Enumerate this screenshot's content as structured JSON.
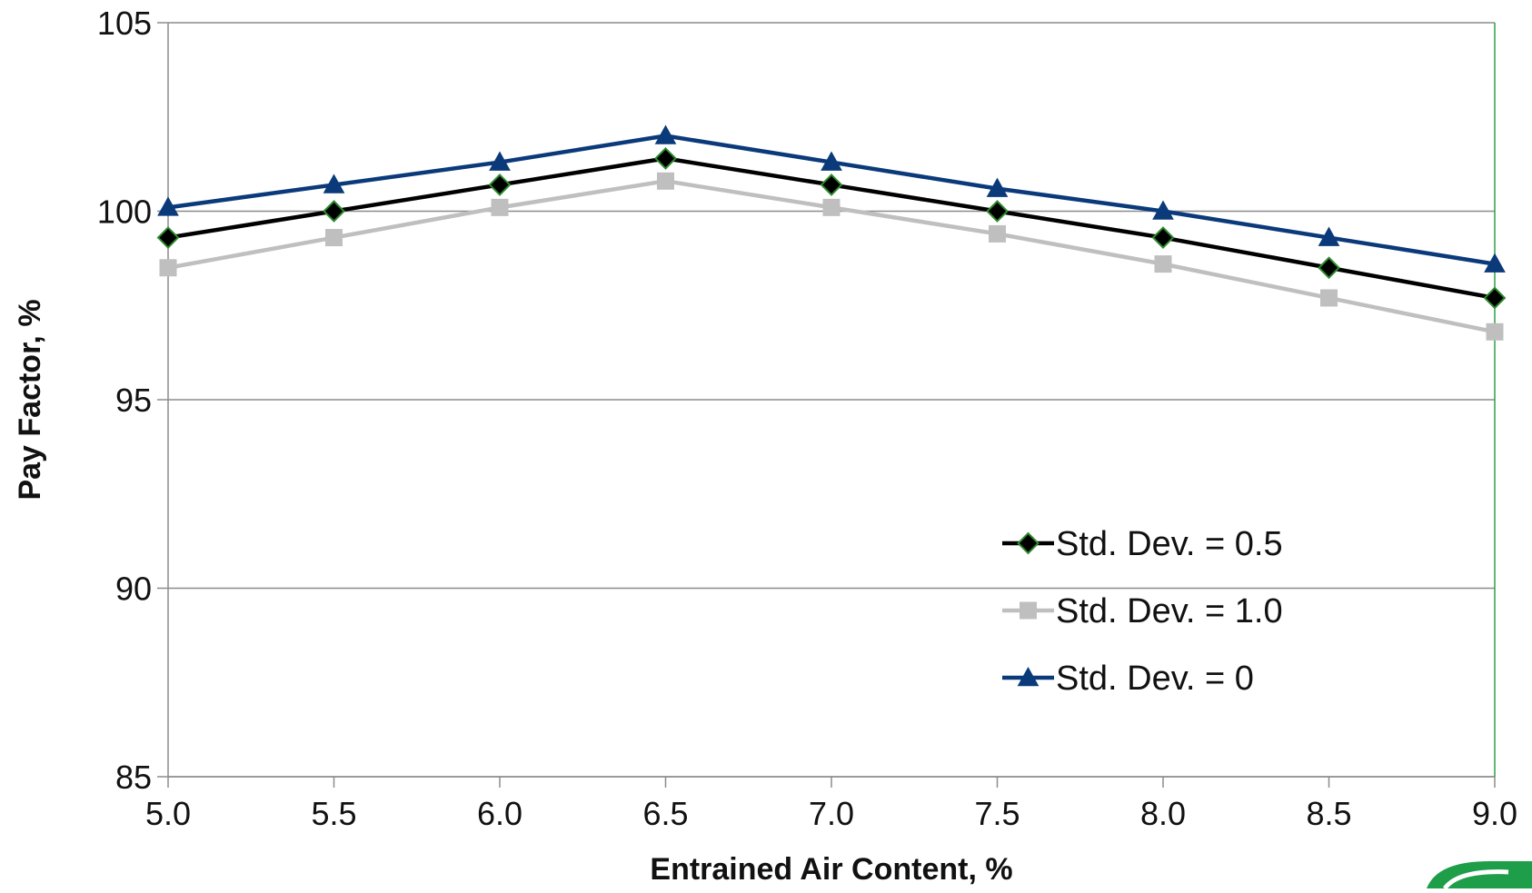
{
  "chart_data": {
    "type": "line",
    "title": "",
    "xlabel": "Entrained Air Content, %",
    "ylabel": "Pay Factor, %",
    "x": [
      5.0,
      5.5,
      6.0,
      6.5,
      7.0,
      7.5,
      8.0,
      8.5,
      9.0
    ],
    "x_tick_labels": [
      "5.0",
      "5.5",
      "6.0",
      "6.5",
      "7.0",
      "7.5",
      "8.0",
      "8.5",
      "9.0"
    ],
    "xlim": [
      5.0,
      9.0
    ],
    "ylim": [
      85,
      105
    ],
    "y_ticks": [
      85,
      90,
      95,
      100,
      105
    ],
    "y_tick_labels": [
      "85",
      "90",
      "95",
      "100",
      "105"
    ],
    "grid": "horizontal",
    "legend_position": "lower-right",
    "series": [
      {
        "name": "Std. Dev. = 0.5",
        "values": [
          99.3,
          100.0,
          100.7,
          101.4,
          100.7,
          100.0,
          99.3,
          98.5,
          97.7
        ],
        "color": "#000000",
        "marker": "diamond",
        "marker_edge_color": "#2e8b2e"
      },
      {
        "name": "Std. Dev. = 1.0",
        "values": [
          98.5,
          99.3,
          100.1,
          100.8,
          100.1,
          99.4,
          98.6,
          97.7,
          96.8
        ],
        "color": "#bfbfbf",
        "marker": "square",
        "marker_edge_color": "#bfbfbf"
      },
      {
        "name": "Std. Dev. = 0",
        "values": [
          100.1,
          100.7,
          101.3,
          102.0,
          101.3,
          100.6,
          100.0,
          99.3,
          98.6
        ],
        "color": "#0b3a7a",
        "marker": "triangle",
        "marker_edge_color": "#0b3a7a"
      }
    ],
    "colors": {
      "grid": "#8c8c8c",
      "plot_border_right": "#2ea043",
      "logo_green": "#1f9e4a"
    }
  }
}
